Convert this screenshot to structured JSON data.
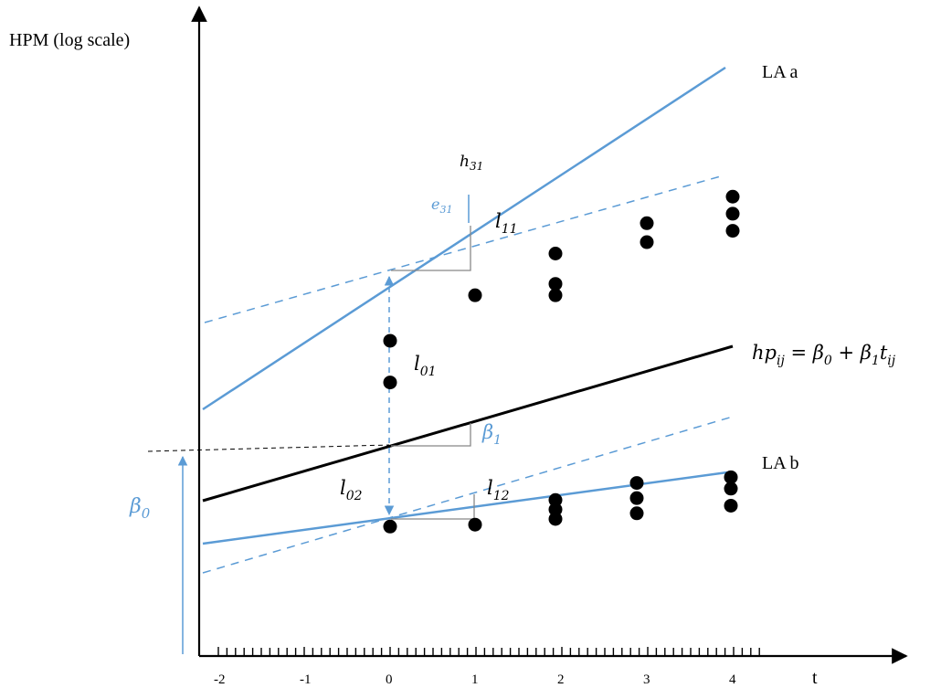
{
  "y_axis_label": "HPM (log scale)",
  "x_axis_label": "t",
  "x_ticks": [
    {
      "value": -2,
      "label": "-2"
    },
    {
      "value": -1,
      "label": "-1"
    },
    {
      "value": 0,
      "label": "0"
    },
    {
      "value": 1,
      "label": "1"
    },
    {
      "value": 2,
      "label": "2"
    },
    {
      "value": 3,
      "label": "3"
    },
    {
      "value": 4,
      "label": "4"
    }
  ],
  "groups": {
    "la_a": {
      "label": "LA a",
      "points": [
        [
          0,
          8.7
        ],
        [
          0,
          7.6
        ],
        [
          1,
          9.9
        ],
        [
          2,
          11.0
        ],
        [
          2,
          10.2
        ],
        [
          2,
          9.9
        ],
        [
          3,
          11.8
        ],
        [
          3,
          11.3
        ],
        [
          4,
          12.5
        ],
        [
          4,
          12.05
        ],
        [
          4,
          11.6
        ]
      ]
    },
    "la_b": {
      "label": "LA b",
      "points": [
        [
          0,
          3.8
        ],
        [
          1,
          3.85
        ],
        [
          2,
          4.5
        ],
        [
          2,
          4.25
        ],
        [
          2,
          4.0
        ],
        [
          3,
          4.95
        ],
        [
          3,
          4.55
        ],
        [
          3,
          4.15
        ],
        [
          4,
          5.1
        ],
        [
          4,
          4.8
        ],
        [
          4,
          4.35
        ]
      ]
    }
  },
  "equation": {
    "parts": [
      "hp",
      "ij",
      " = β",
      "0",
      " + β",
      "1",
      "t",
      "ij"
    ]
  },
  "labels": {
    "h31": [
      "h",
      "31"
    ],
    "e31": [
      "e",
      "31"
    ],
    "l11": [
      "l",
      "11"
    ],
    "l01": [
      "l",
      "01"
    ],
    "l02": [
      "l",
      "02"
    ],
    "l12": [
      "l",
      "12"
    ],
    "beta1": [
      "β",
      "1"
    ],
    "beta0": [
      "β",
      "0"
    ]
  },
  "colors": {
    "blue": "#5b9bd5",
    "black": "#000000"
  }
}
